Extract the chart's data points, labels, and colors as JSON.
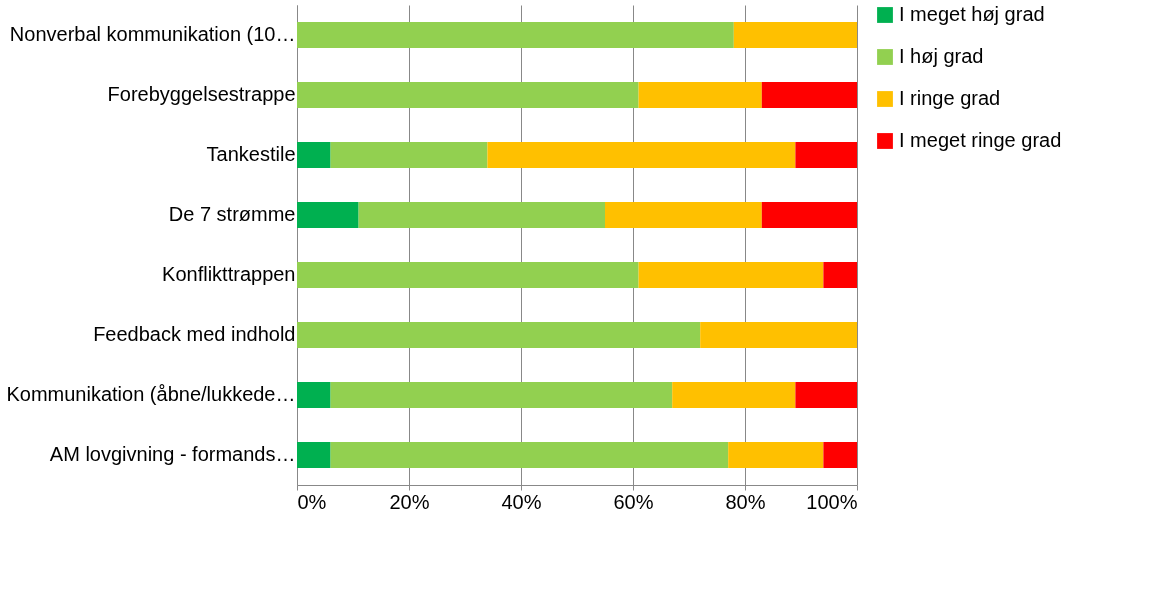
{
  "chart_data": {
    "type": "bar",
    "orientation": "horizontal",
    "stacked": true,
    "categories": [
      "Nonverbal kommunikation (10…",
      "Forebyggelsestrappe",
      "Tankestile",
      "De 7 strømme",
      "Konflikttrappen",
      "Feedback med indhold",
      "Kommunikation (åbne/lukkede…",
      "AM lovgivning - formands…"
    ],
    "series": [
      {
        "name": "I meget høj grad",
        "color": "#00b050",
        "values": [
          0,
          0,
          6,
          11,
          0,
          0,
          6,
          6
        ]
      },
      {
        "name": "I høj grad",
        "color": "#92d050",
        "values": [
          78,
          61,
          28,
          44,
          61,
          72,
          61,
          71
        ]
      },
      {
        "name": "I ringe grad",
        "color": "#ffc000",
        "values": [
          22,
          22,
          55,
          28,
          33,
          28,
          22,
          17
        ]
      },
      {
        "name": "I meget ringe grad",
        "color": "#ff0000",
        "values": [
          0,
          17,
          11,
          17,
          6,
          0,
          11,
          6
        ]
      }
    ],
    "xlim": [
      0,
      100
    ],
    "xticks": [
      {
        "value": 0,
        "label": "0%"
      },
      {
        "value": 20,
        "label": "20%"
      },
      {
        "value": 40,
        "label": "40%"
      },
      {
        "value": 60,
        "label": "60%"
      },
      {
        "value": 80,
        "label": "80%"
      },
      {
        "value": 100,
        "label": "100%"
      }
    ],
    "grid": "x",
    "legend": "right"
  }
}
